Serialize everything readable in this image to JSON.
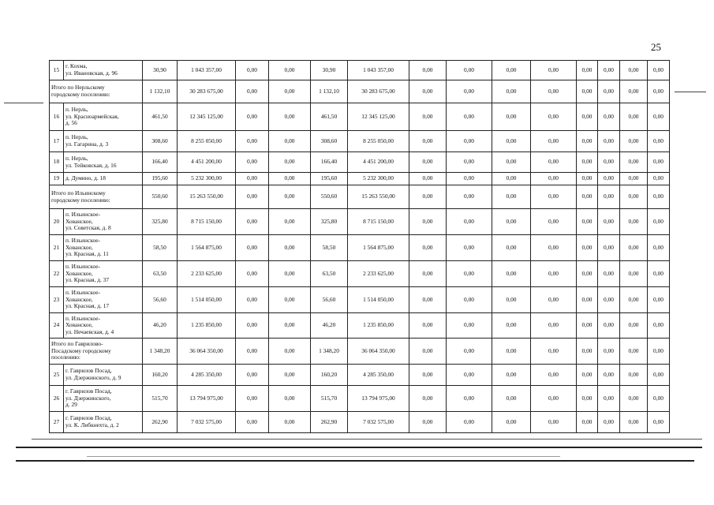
{
  "page_number": "25",
  "rows": [
    {
      "type": "item",
      "num": "15",
      "address": [
        "г. Кохма,",
        "ул. Ивановская, д. 96"
      ],
      "values": [
        "30,90",
        "1 043 357,00",
        "0,00",
        "0,00",
        "30,90",
        "1 043 357,00",
        "0,00",
        "0,00",
        "0,00",
        "0,00",
        "0,00",
        "0,00",
        "0,00",
        "0,00"
      ]
    },
    {
      "type": "total",
      "address": [
        "Итого по Нерльскому",
        "городскому поселению:"
      ],
      "values": [
        "1 132,10",
        "30 283 675,00",
        "0,00",
        "0,00",
        "1 132,10",
        "30 283 675,00",
        "0,00",
        "0,00",
        "0,00",
        "0,00",
        "0,00",
        "0,00",
        "0,00",
        "0,00"
      ]
    },
    {
      "type": "item",
      "num": "16",
      "address": [
        "п. Нерль,",
        "ул. Красноармейская,",
        "д. 56"
      ],
      "values": [
        "461,50",
        "12 345 125,00",
        "0,00",
        "0,00",
        "461,50",
        "12 345 125,00",
        "0,00",
        "0,00",
        "0,00",
        "0,00",
        "0,00",
        "0,00",
        "0,00",
        "0,00"
      ]
    },
    {
      "type": "item",
      "num": "17",
      "address": [
        "п. Нерль,",
        "ул. Гагарина, д. 3"
      ],
      "values": [
        "308,60",
        "8 255 050,00",
        "0,00",
        "0,00",
        "308,60",
        "8 255 050,00",
        "0,00",
        "0,00",
        "0,00",
        "0,00",
        "0,00",
        "0,00",
        "0,00",
        "0,00"
      ]
    },
    {
      "type": "item",
      "num": "18",
      "address": [
        "п. Нерль,",
        "ул. Тейковская, д. 16"
      ],
      "values": [
        "166,40",
        "4 451 200,00",
        "0,00",
        "0,00",
        "166,40",
        "4 451 200,00",
        "0,00",
        "0,00",
        "0,00",
        "0,00",
        "0,00",
        "0,00",
        "0,00",
        "0,00"
      ]
    },
    {
      "type": "item",
      "num": "19",
      "address": [
        "д. Думино, д. 18"
      ],
      "values": [
        "195,60",
        "5 232 300,00",
        "0,00",
        "0,00",
        "195,60",
        "5 232 300,00",
        "0,00",
        "0,00",
        "0,00",
        "0,00",
        "0,00",
        "0,00",
        "0,00",
        "0,00"
      ]
    },
    {
      "type": "total",
      "address": [
        "Итого по Ильинскому",
        "городскому поселению:"
      ],
      "values": [
        "550,60",
        "15 263 550,00",
        "0,00",
        "0,00",
        "550,60",
        "15 263 550,00",
        "0,00",
        "0,00",
        "0,00",
        "0,00",
        "0,00",
        "0,00",
        "0,00",
        "0,00"
      ]
    },
    {
      "type": "item",
      "num": "20",
      "address": [
        "п. Ильинское-",
        "Хованское,",
        "ул. Советская, д. 8"
      ],
      "values": [
        "325,80",
        "8 715 150,00",
        "0,00",
        "0,00",
        "325,80",
        "8 715 150,00",
        "0,00",
        "0,00",
        "0,00",
        "0,00",
        "0,00",
        "0,00",
        "0,00",
        "0,00"
      ]
    },
    {
      "type": "item",
      "num": "21",
      "address": [
        "п. Ильинское-",
        "Хованское,",
        "ул. Красная, д. 11"
      ],
      "values": [
        "58,50",
        "1 564 875,00",
        "0,00",
        "0,00",
        "58,50",
        "1 564 875,00",
        "0,00",
        "0,00",
        "0,00",
        "0,00",
        "0,00",
        "0,00",
        "0,00",
        "0,00"
      ]
    },
    {
      "type": "item",
      "num": "22",
      "address": [
        "п. Ильинское-",
        "Хованское,",
        "ул. Красная, д. 37"
      ],
      "values": [
        "63,50",
        "2 233 625,00",
        "0,00",
        "0,00",
        "63,50",
        "2 233 625,00",
        "0,00",
        "0,00",
        "0,00",
        "0,00",
        "0,00",
        "0,00",
        "0,00",
        "0,00"
      ]
    },
    {
      "type": "item",
      "num": "23",
      "address": [
        "п. Ильинское-",
        "Хованское,",
        "ул. Красная, д. 17"
      ],
      "values": [
        "56,60",
        "1 514 050,00",
        "0,00",
        "0,00",
        "56,60",
        "1 514 050,00",
        "0,00",
        "0,00",
        "0,00",
        "0,00",
        "0,00",
        "0,00",
        "0,00",
        "0,00"
      ]
    },
    {
      "type": "item",
      "num": "24",
      "address": [
        "п. Ильинское-",
        "Хованское,",
        "ул. Нечаевская, д. 4"
      ],
      "values": [
        "46,20",
        "1 235 850,00",
        "0,00",
        "0,00",
        "46,20",
        "1 235 850,00",
        "0,00",
        "0,00",
        "0,00",
        "0,00",
        "0,00",
        "0,00",
        "0,00",
        "0,00"
      ]
    },
    {
      "type": "total",
      "address": [
        "Итого по Гаврилово-",
        "Посадскому городскому",
        "поселению:"
      ],
      "values": [
        "1 348,20",
        "36 064 350,00",
        "0,00",
        "0,00",
        "1 348,20",
        "36 064 350,00",
        "0,00",
        "0,00",
        "0,00",
        "0,00",
        "0,00",
        "0,00",
        "0,00",
        "0,00"
      ]
    },
    {
      "type": "item",
      "num": "25",
      "address": [
        "г. Гаврилов Посад,",
        "ул. Дзержинского, д. 9"
      ],
      "values": [
        "160,20",
        "4 285 350,00",
        "0,00",
        "0,00",
        "160,20",
        "4 285 350,00",
        "0,00",
        "0,00",
        "0,00",
        "0,00",
        "0,00",
        "0,00",
        "0,00",
        "0,00"
      ]
    },
    {
      "type": "item",
      "num": "26",
      "address": [
        "г. Гаврилов Посад,",
        "ул. Дзержинского,",
        "д. 29"
      ],
      "values": [
        "515,70",
        "13 794 975,00",
        "0,00",
        "0,00",
        "515,70",
        "13 794 975,00",
        "0,00",
        "0,00",
        "0,00",
        "0,00",
        "0,00",
        "0,00",
        "0,00",
        "0,00"
      ]
    },
    {
      "type": "item",
      "num": "27",
      "address": [
        "г. Гаврилов Посад,",
        "ул. К. Либкнехта, д. 2"
      ],
      "values": [
        "262,90",
        "7 032 575,00",
        "0,00",
        "0,00",
        "262,90",
        "7 032 575,00",
        "0,00",
        "0,00",
        "0,00",
        "0,00",
        "0,00",
        "0,00",
        "0,00",
        "0,00"
      ]
    }
  ]
}
